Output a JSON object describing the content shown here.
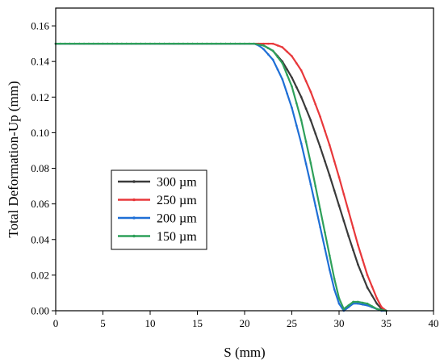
{
  "chart_data": {
    "type": "line",
    "title": "",
    "xlabel": "S (mm)",
    "ylabel": "Total Deformation-Up (mm)",
    "xlim": [
      0,
      40
    ],
    "ylim": [
      0,
      0.17
    ],
    "xticks": [
      0,
      5,
      10,
      15,
      20,
      25,
      30,
      35,
      40
    ],
    "yticks": [
      0.0,
      0.02,
      0.04,
      0.06,
      0.08,
      0.1,
      0.12,
      0.14,
      0.16
    ],
    "ytick_labels": [
      "0.00",
      "0.02",
      "0.04",
      "0.06",
      "0.08",
      "0.10",
      "0.12",
      "0.14",
      "0.16"
    ],
    "grid": false,
    "legend_position": "center-left",
    "series": [
      {
        "name": "300 µm",
        "color": "#3a3a3a",
        "x": [
          0,
          20,
          21,
          22,
          23,
          24,
          25,
          26,
          27,
          28,
          29,
          30,
          31,
          32,
          33,
          34,
          34.5,
          35
        ],
        "y": [
          0.15,
          0.15,
          0.15,
          0.149,
          0.146,
          0.14,
          0.131,
          0.12,
          0.107,
          0.092,
          0.076,
          0.059,
          0.042,
          0.026,
          0.013,
          0.004,
          0.001,
          0.0
        ]
      },
      {
        "name": "250 µm",
        "color": "#e8383b",
        "x": [
          0,
          22,
          23,
          24,
          25,
          26,
          27,
          28,
          29,
          30,
          31,
          32,
          33,
          34,
          34.5,
          35
        ],
        "y": [
          0.15,
          0.15,
          0.15,
          0.148,
          0.143,
          0.135,
          0.123,
          0.109,
          0.093,
          0.075,
          0.056,
          0.037,
          0.02,
          0.007,
          0.002,
          0.0
        ]
      },
      {
        "name": "200 µm",
        "color": "#1f6fd6",
        "x": [
          0,
          20,
          21,
          21.5,
          22,
          23,
          24,
          25,
          26,
          27,
          28,
          29,
          29.5,
          30,
          30.5,
          31,
          31.5,
          32,
          33,
          34,
          34.5,
          35
        ],
        "y": [
          0.15,
          0.15,
          0.15,
          0.149,
          0.147,
          0.141,
          0.13,
          0.114,
          0.094,
          0.071,
          0.047,
          0.023,
          0.012,
          0.004,
          0.0,
          0.002,
          0.004,
          0.004,
          0.003,
          0.001,
          0.0,
          0.0
        ]
      },
      {
        "name": "150 µm",
        "color": "#2ea05a",
        "x": [
          0,
          20,
          21,
          22,
          23,
          24,
          25,
          26,
          27,
          28,
          29,
          29.5,
          30,
          30.5,
          31,
          31.5,
          32,
          33,
          34,
          35
        ],
        "y": [
          0.15,
          0.15,
          0.15,
          0.149,
          0.146,
          0.139,
          0.126,
          0.107,
          0.083,
          0.057,
          0.031,
          0.018,
          0.007,
          0.001,
          0.003,
          0.005,
          0.005,
          0.004,
          0.001,
          0.0
        ]
      }
    ]
  }
}
